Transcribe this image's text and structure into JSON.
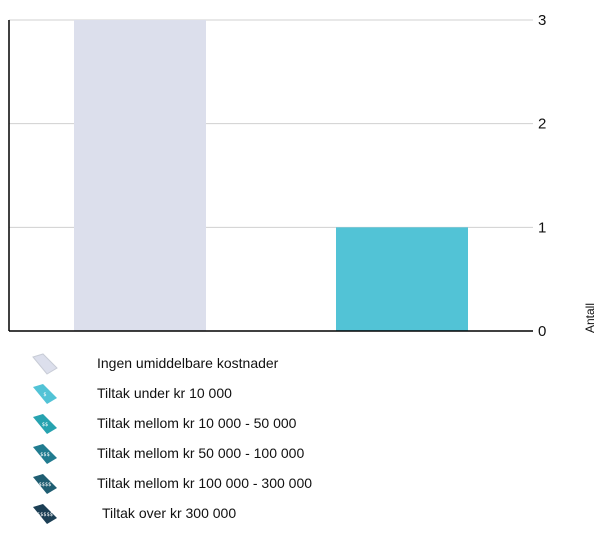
{
  "chart_data": {
    "type": "bar",
    "categories": [
      "Ingen umiddelbare kostnader",
      "Tiltak under kr 10 000"
    ],
    "values": [
      3,
      1
    ],
    "bar_colors": [
      "#dcdfec",
      "#52c3d6"
    ],
    "ylabel": "Antall",
    "ylim": [
      0,
      3
    ],
    "yticks": [
      "0",
      "1",
      "2",
      "3"
    ],
    "y_axis_position": "right",
    "grid": true,
    "legend_position": "bottom"
  },
  "legend": {
    "items": [
      {
        "label": "Ingen umiddelbare kostnader",
        "icon": "tag-empty-icon",
        "color": "#dcdfec",
        "icon_text": ""
      },
      {
        "label": "Tiltak under kr 10 000",
        "icon": "tag-one-coin-icon",
        "color": "#52c3d6",
        "icon_text": "$"
      },
      {
        "label": "Tiltak mellom kr 10 000 - 50 000",
        "icon": "tag-two-coin-icon",
        "color": "#27a3b0",
        "icon_text": "$$"
      },
      {
        "label": "Tiltak mellom kr 50 000 - 100 000",
        "icon": "tag-three-coin-icon",
        "color": "#217c90",
        "icon_text": "$$$"
      },
      {
        "label": "Tiltak mellom kr 100 000 - 300 000",
        "icon": "tag-four-coin-icon",
        "color": "#1f5e72",
        "icon_text": "$$$$"
      },
      {
        "label": "Tiltak over kr  300 000",
        "icon": "tag-five-coin-icon",
        "color": "#1c3f55",
        "icon_text": "$$$$$"
      }
    ]
  }
}
